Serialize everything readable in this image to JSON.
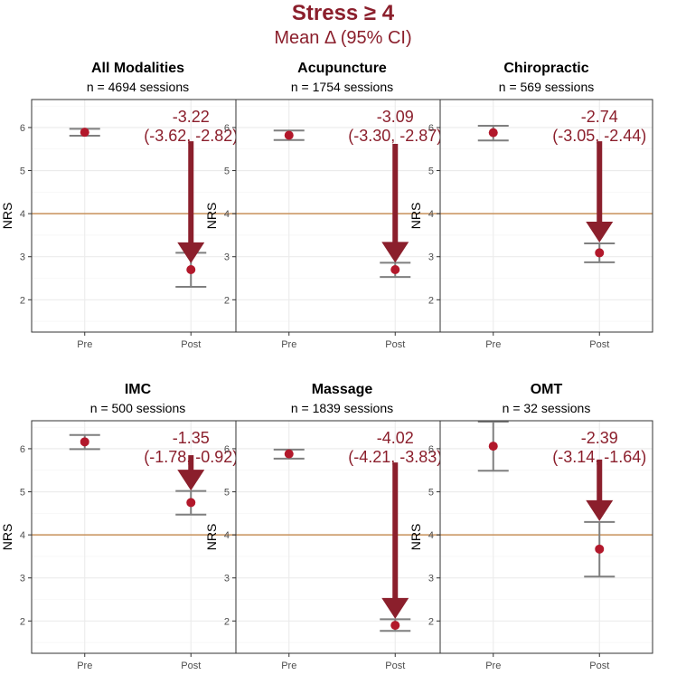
{
  "figure": {
    "title": "Stress ≥ 4",
    "subtitle": "Mean Δ (95% CI)"
  },
  "colors": {
    "accent": "#8b1f2c",
    "point": "#b2182b",
    "errorbar": "#7f7f7f",
    "threshold": "#c8915a",
    "grid": "#ebebeb",
    "panel_border": "#333333"
  },
  "chart_data": [
    {
      "type": "scatter",
      "title": "All Modalities",
      "subtitle": "n = 4694 sessions",
      "ylabel": "NRS",
      "categories": [
        "Pre",
        "Post"
      ],
      "ylim": [
        1.25,
        6.65
      ],
      "yticks": [
        2,
        3,
        4,
        5,
        6
      ],
      "threshold": 4,
      "points": [
        {
          "label": "Pre",
          "mean": 5.89,
          "lower": 5.81,
          "upper": 5.97
        },
        {
          "label": "Post",
          "mean": 2.7,
          "lower": 2.3,
          "upper": 3.09
        }
      ],
      "arrow": {
        "from": 5.68,
        "to": 2.85
      },
      "annotation": {
        "delta": "-3.22",
        "ci": "(-3.62, -2.82)"
      }
    },
    {
      "type": "scatter",
      "title": "Acupuncture",
      "subtitle": "n = 1754 sessions",
      "ylabel": "NRS",
      "categories": [
        "Pre",
        "Post"
      ],
      "ylim": [
        1.25,
        6.65
      ],
      "yticks": [
        2,
        3,
        4,
        5,
        6
      ],
      "threshold": 4,
      "points": [
        {
          "label": "Pre",
          "mean": 5.82,
          "lower": 5.71,
          "upper": 5.93
        },
        {
          "label": "Post",
          "mean": 2.7,
          "lower": 2.53,
          "upper": 2.86
        }
      ],
      "arrow": {
        "from": 5.62,
        "to": 2.86
      },
      "annotation": {
        "delta": "-3.09",
        "ci": "(-3.30, -2.87)"
      }
    },
    {
      "type": "scatter",
      "title": "Chiropractic",
      "subtitle": "n = 569 sessions",
      "ylabel": "NRS",
      "categories": [
        "Pre",
        "Post"
      ],
      "ylim": [
        1.25,
        6.65
      ],
      "yticks": [
        2,
        3,
        4,
        5,
        6
      ],
      "threshold": 4,
      "points": [
        {
          "label": "Pre",
          "mean": 5.88,
          "lower": 5.7,
          "upper": 6.04
        },
        {
          "label": "Post",
          "mean": 3.09,
          "lower": 2.87,
          "upper": 3.31
        }
      ],
      "arrow": {
        "from": 5.68,
        "to": 3.33
      },
      "annotation": {
        "delta": "-2.74",
        "ci": "(-3.05, -2.44)"
      }
    },
    {
      "type": "scatter",
      "title": "IMC",
      "subtitle": "n = 500 sessions",
      "ylabel": "NRS",
      "categories": [
        "Pre",
        "Post"
      ],
      "ylim": [
        1.25,
        6.65
      ],
      "yticks": [
        2,
        3,
        4,
        5,
        6
      ],
      "threshold": 4,
      "points": [
        {
          "label": "Pre",
          "mean": 6.16,
          "lower": 5.99,
          "upper": 6.32
        },
        {
          "label": "Post",
          "mean": 4.75,
          "lower": 4.47,
          "upper": 5.02
        }
      ],
      "arrow": {
        "from": 5.85,
        "to": 5.03
      },
      "annotation": {
        "delta": "-1.35",
        "ci": "(-1.78, -0.92)"
      }
    },
    {
      "type": "scatter",
      "title": "Massage",
      "subtitle": "n = 1839 sessions",
      "ylabel": "NRS",
      "categories": [
        "Pre",
        "Post"
      ],
      "ylim": [
        1.25,
        6.65
      ],
      "yticks": [
        2,
        3,
        4,
        5,
        6
      ],
      "threshold": 4,
      "points": [
        {
          "label": "Pre",
          "mean": 5.88,
          "lower": 5.77,
          "upper": 5.98
        },
        {
          "label": "Post",
          "mean": 1.9,
          "lower": 1.77,
          "upper": 2.04
        }
      ],
      "arrow": {
        "from": 5.68,
        "to": 2.05
      },
      "annotation": {
        "delta": "-4.02",
        "ci": "(-4.21, -3.83)"
      }
    },
    {
      "type": "scatter",
      "title": "OMT",
      "subtitle": "n = 32 sessions",
      "ylabel": "NRS",
      "categories": [
        "Pre",
        "Post"
      ],
      "ylim": [
        1.25,
        6.65
      ],
      "yticks": [
        2,
        3,
        4,
        5,
        6
      ],
      "threshold": 4,
      "points": [
        {
          "label": "Pre",
          "mean": 6.06,
          "lower": 5.49,
          "upper": 6.63
        },
        {
          "label": "Post",
          "mean": 3.67,
          "lower": 3.03,
          "upper": 4.3
        }
      ],
      "arrow": {
        "from": 5.75,
        "to": 4.32
      },
      "annotation": {
        "delta": "-2.39",
        "ci": "(-3.14, -1.64)"
      }
    }
  ]
}
